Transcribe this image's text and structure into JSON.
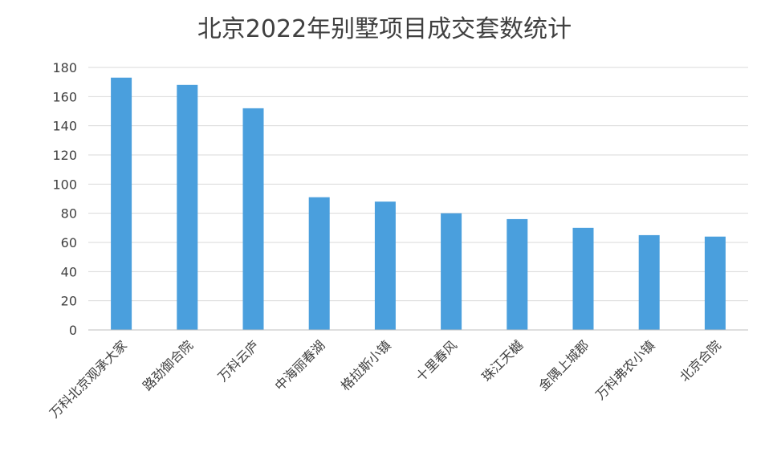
{
  "chart_data": {
    "type": "bar",
    "title": "北京2022年别墅项目成交套数统计",
    "categories": [
      "万科北京观承大家",
      "路劲御合院",
      "万科云庐",
      "中海丽春湖",
      "格拉斯小镇",
      "十里春风",
      "珠江天樾",
      "金隅上城郡",
      "万科弗农小镇",
      "北京合院"
    ],
    "values": [
      173,
      168,
      152,
      91,
      88,
      80,
      76,
      70,
      65,
      64
    ],
    "yticks": [
      "0",
      "20",
      "40",
      "60",
      "80",
      "100",
      "120",
      "140",
      "160",
      "180"
    ],
    "ylim": [
      0,
      180
    ],
    "grid": true,
    "legend": "none",
    "bar_color": "#4a9fdd"
  }
}
